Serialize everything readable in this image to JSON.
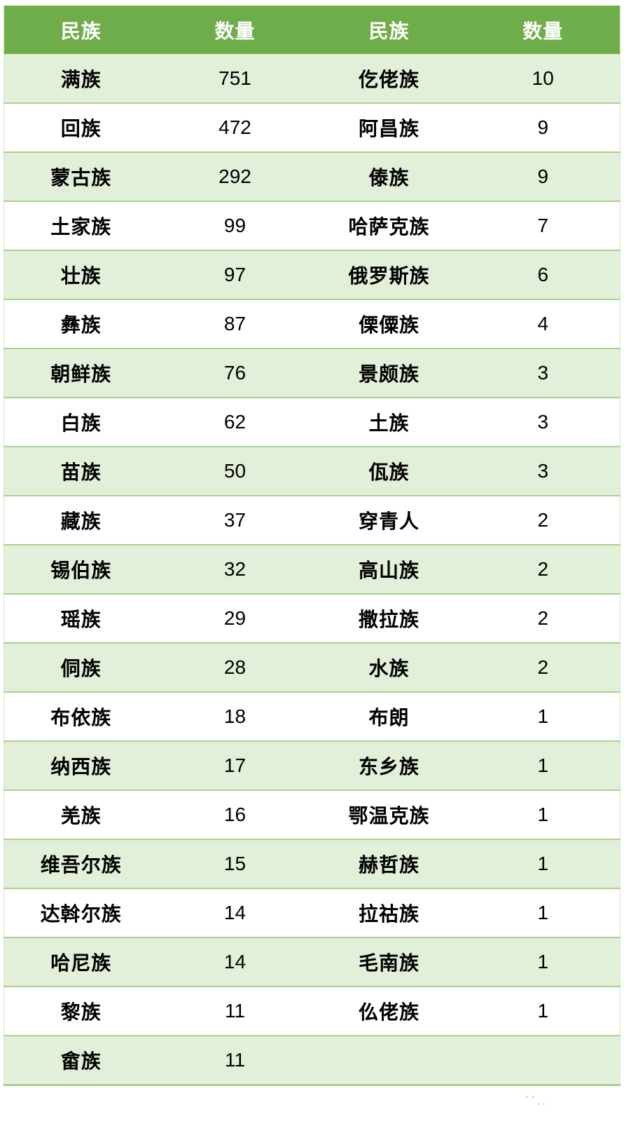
{
  "chart_data": {
    "type": "table",
    "columns": [
      "民族",
      "数量",
      "民族",
      "数量"
    ],
    "rows": [
      [
        "满族",
        "751",
        "仡佬族",
        "10"
      ],
      [
        "回族",
        "472",
        "阿昌族",
        "9"
      ],
      [
        "蒙古族",
        "292",
        "傣族",
        "9"
      ],
      [
        "土家族",
        "99",
        "哈萨克族",
        "7"
      ],
      [
        "壮族",
        "97",
        "俄罗斯族",
        "6"
      ],
      [
        "彝族",
        "87",
        "傈僳族",
        "4"
      ],
      [
        "朝鲜族",
        "76",
        "景颇族",
        "3"
      ],
      [
        "白族",
        "62",
        "土族",
        "3"
      ],
      [
        "苗族",
        "50",
        "佤族",
        "3"
      ],
      [
        "藏族",
        "37",
        "穿青人",
        "2"
      ],
      [
        "锡伯族",
        "32",
        "高山族",
        "2"
      ],
      [
        "瑶族",
        "29",
        "撒拉族",
        "2"
      ],
      [
        "侗族",
        "28",
        "水族",
        "2"
      ],
      [
        "布依族",
        "18",
        "布朗",
        "1"
      ],
      [
        "纳西族",
        "17",
        "东乡族",
        "1"
      ],
      [
        "羌族",
        "16",
        "鄂温克族",
        "1"
      ],
      [
        "维吾尔族",
        "15",
        "赫哲族",
        "1"
      ],
      [
        "达斡尔族",
        "14",
        "拉祜族",
        "1"
      ],
      [
        "哈尼族",
        "14",
        "毛南族",
        "1"
      ],
      [
        "黎族",
        "11",
        "仫佬族",
        "1"
      ],
      [
        "畲族",
        "11",
        "",
        ""
      ]
    ],
    "layout": {
      "header_row": true,
      "zebra_striping": "odd-rows-light-green",
      "column_borders": false,
      "row_separators": true
    }
  },
  "watermark": {
    "label": "云执照",
    "icon": "wechat-icon"
  },
  "colors": {
    "header_bg": "#6fad4a",
    "header_text": "#ffffff",
    "row_alt_bg": "#e2efd9",
    "row_bg": "#ffffff",
    "separator": "#a9d18e",
    "body_text": "#000000"
  }
}
